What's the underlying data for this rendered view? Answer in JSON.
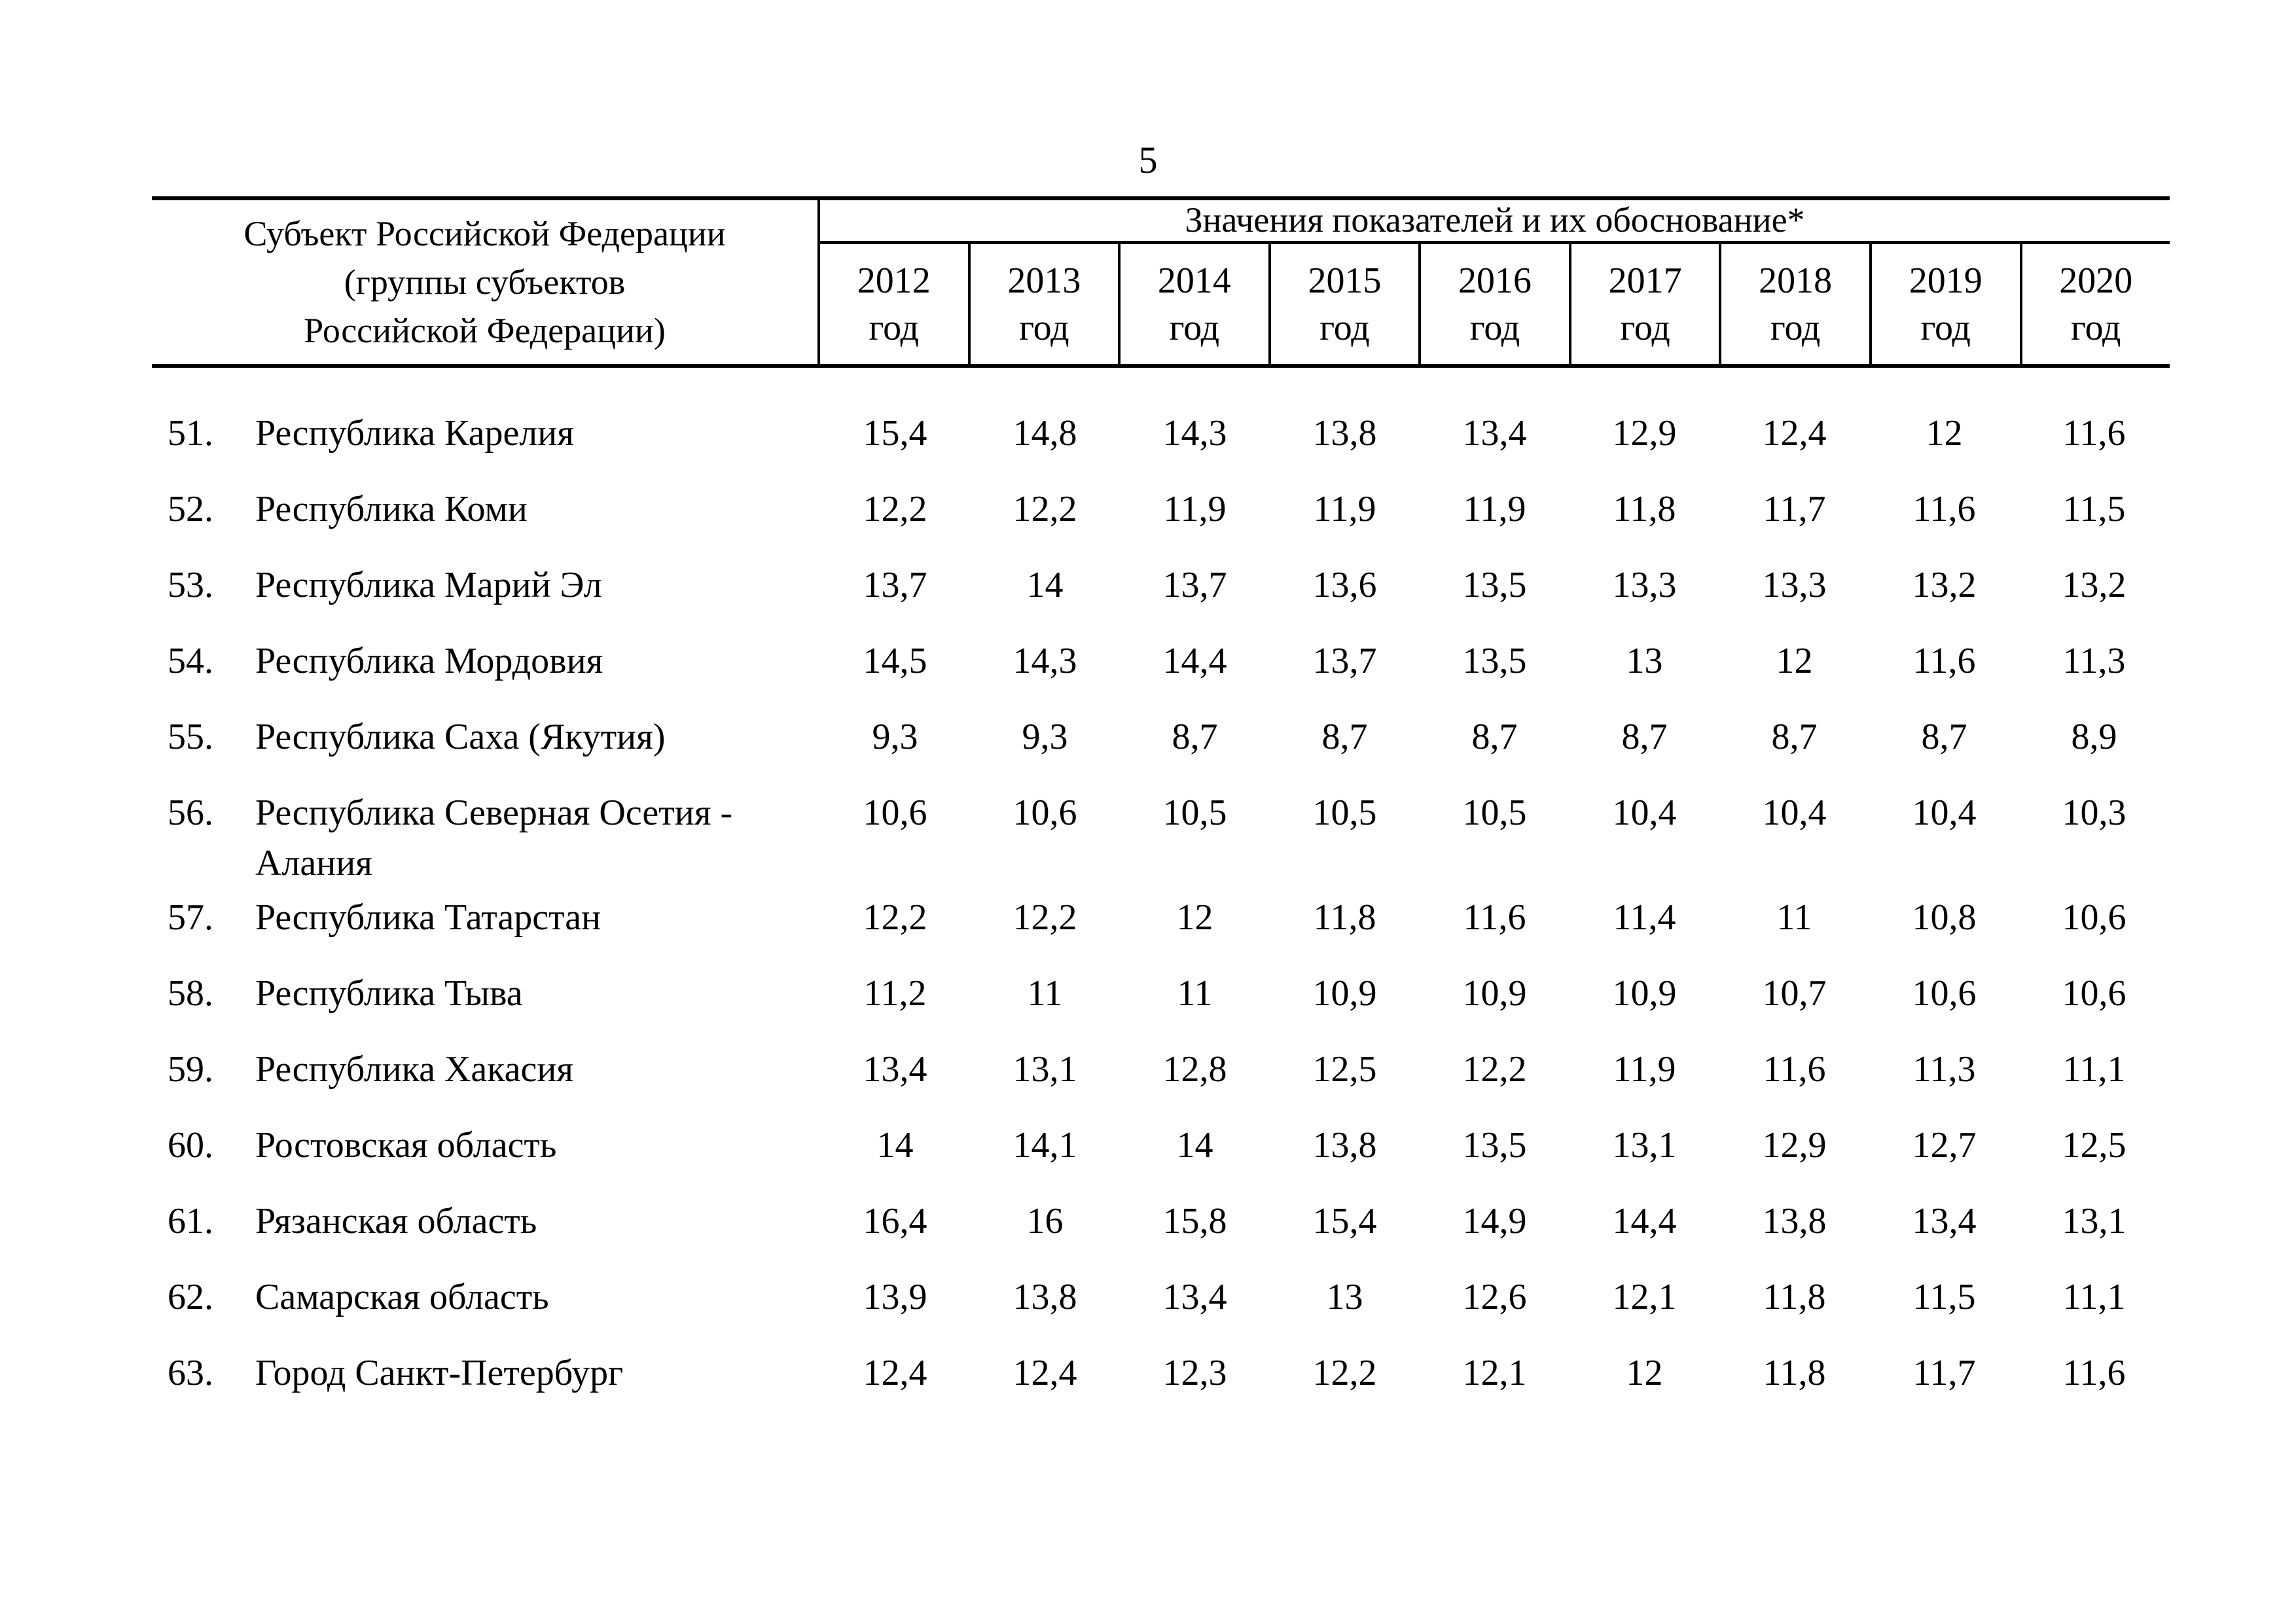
{
  "page_number": "5",
  "table": {
    "subject_header_lines": [
      "Субъект Российской Федерации",
      "(группы субъектов",
      "Российской Федерации)"
    ],
    "values_header": "Значения показателей и их обоснование*",
    "year_suffix": "год",
    "years": [
      "2012",
      "2013",
      "2014",
      "2015",
      "2016",
      "2017",
      "2018",
      "2019",
      "2020"
    ],
    "rows": [
      {
        "num": "51.",
        "name": "Республика Карелия",
        "values": [
          "15,4",
          "14,8",
          "14,3",
          "13,8",
          "13,4",
          "12,9",
          "12,4",
          "12",
          "11,6"
        ]
      },
      {
        "num": "52.",
        "name": "Республика Коми",
        "values": [
          "12,2",
          "12,2",
          "11,9",
          "11,9",
          "11,9",
          "11,8",
          "11,7",
          "11,6",
          "11,5"
        ]
      },
      {
        "num": "53.",
        "name": "Республика Марий Эл",
        "values": [
          "13,7",
          "14",
          "13,7",
          "13,6",
          "13,5",
          "13,3",
          "13,3",
          "13,2",
          "13,2"
        ]
      },
      {
        "num": "54.",
        "name": "Республика Мордовия",
        "values": [
          "14,5",
          "14,3",
          "14,4",
          "13,7",
          "13,5",
          "13",
          "12",
          "11,6",
          "11,3"
        ]
      },
      {
        "num": "55.",
        "name": "Республика Саха (Якутия)",
        "values": [
          "9,3",
          "9,3",
          "8,7",
          "8,7",
          "8,7",
          "8,7",
          "8,7",
          "8,7",
          "8,9"
        ]
      },
      {
        "num": "56.",
        "name": "Республика Северная Осетия -\nАлания",
        "values": [
          "10,6",
          "10,6",
          "10,5",
          "10,5",
          "10,5",
          "10,4",
          "10,4",
          "10,4",
          "10,3"
        ]
      },
      {
        "num": "57.",
        "name": "Республика Татарстан",
        "values": [
          "12,2",
          "12,2",
          "12",
          "11,8",
          "11,6",
          "11,4",
          "11",
          "10,8",
          "10,6"
        ]
      },
      {
        "num": "58.",
        "name": "Республика Тыва",
        "values": [
          "11,2",
          "11",
          "11",
          "10,9",
          "10,9",
          "10,9",
          "10,7",
          "10,6",
          "10,6"
        ]
      },
      {
        "num": "59.",
        "name": "Республика Хакасия",
        "values": [
          "13,4",
          "13,1",
          "12,8",
          "12,5",
          "12,2",
          "11,9",
          "11,6",
          "11,3",
          "11,1"
        ]
      },
      {
        "num": "60.",
        "name": "Ростовская область",
        "values": [
          "14",
          "14,1",
          "14",
          "13,8",
          "13,5",
          "13,1",
          "12,9",
          "12,7",
          "12,5"
        ]
      },
      {
        "num": "61.",
        "name": "Рязанская область",
        "values": [
          "16,4",
          "16",
          "15,8",
          "15,4",
          "14,9",
          "14,4",
          "13,8",
          "13,4",
          "13,1"
        ]
      },
      {
        "num": "62.",
        "name": "Самарская область",
        "values": [
          "13,9",
          "13,8",
          "13,4",
          "13",
          "12,6",
          "12,1",
          "11,8",
          "11,5",
          "11,1"
        ]
      },
      {
        "num": "63.",
        "name": "Город Санкт-Петербург",
        "values": [
          "12,4",
          "12,4",
          "12,3",
          "12,2",
          "12,1",
          "12",
          "11,8",
          "11,7",
          "11,6"
        ]
      }
    ]
  }
}
